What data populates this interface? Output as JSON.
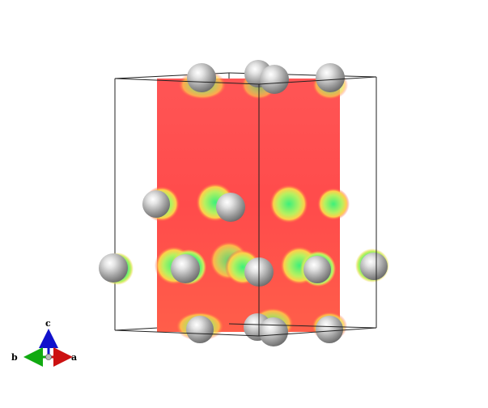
{
  "scene": {
    "background": "#ffffff",
    "slice_color_high": "#ff4b4b",
    "slice_color_mid": "#ffd04a",
    "slice_color_low": "#3df07a",
    "slice_color_cyan": "#25e0b8",
    "atom_color": "#a9a9a9"
  },
  "axes": {
    "a_label": "a",
    "b_label": "b",
    "c_label": "c",
    "a_color": "#cc1111",
    "b_color": "#11aa11",
    "c_color": "#1111cc"
  }
}
